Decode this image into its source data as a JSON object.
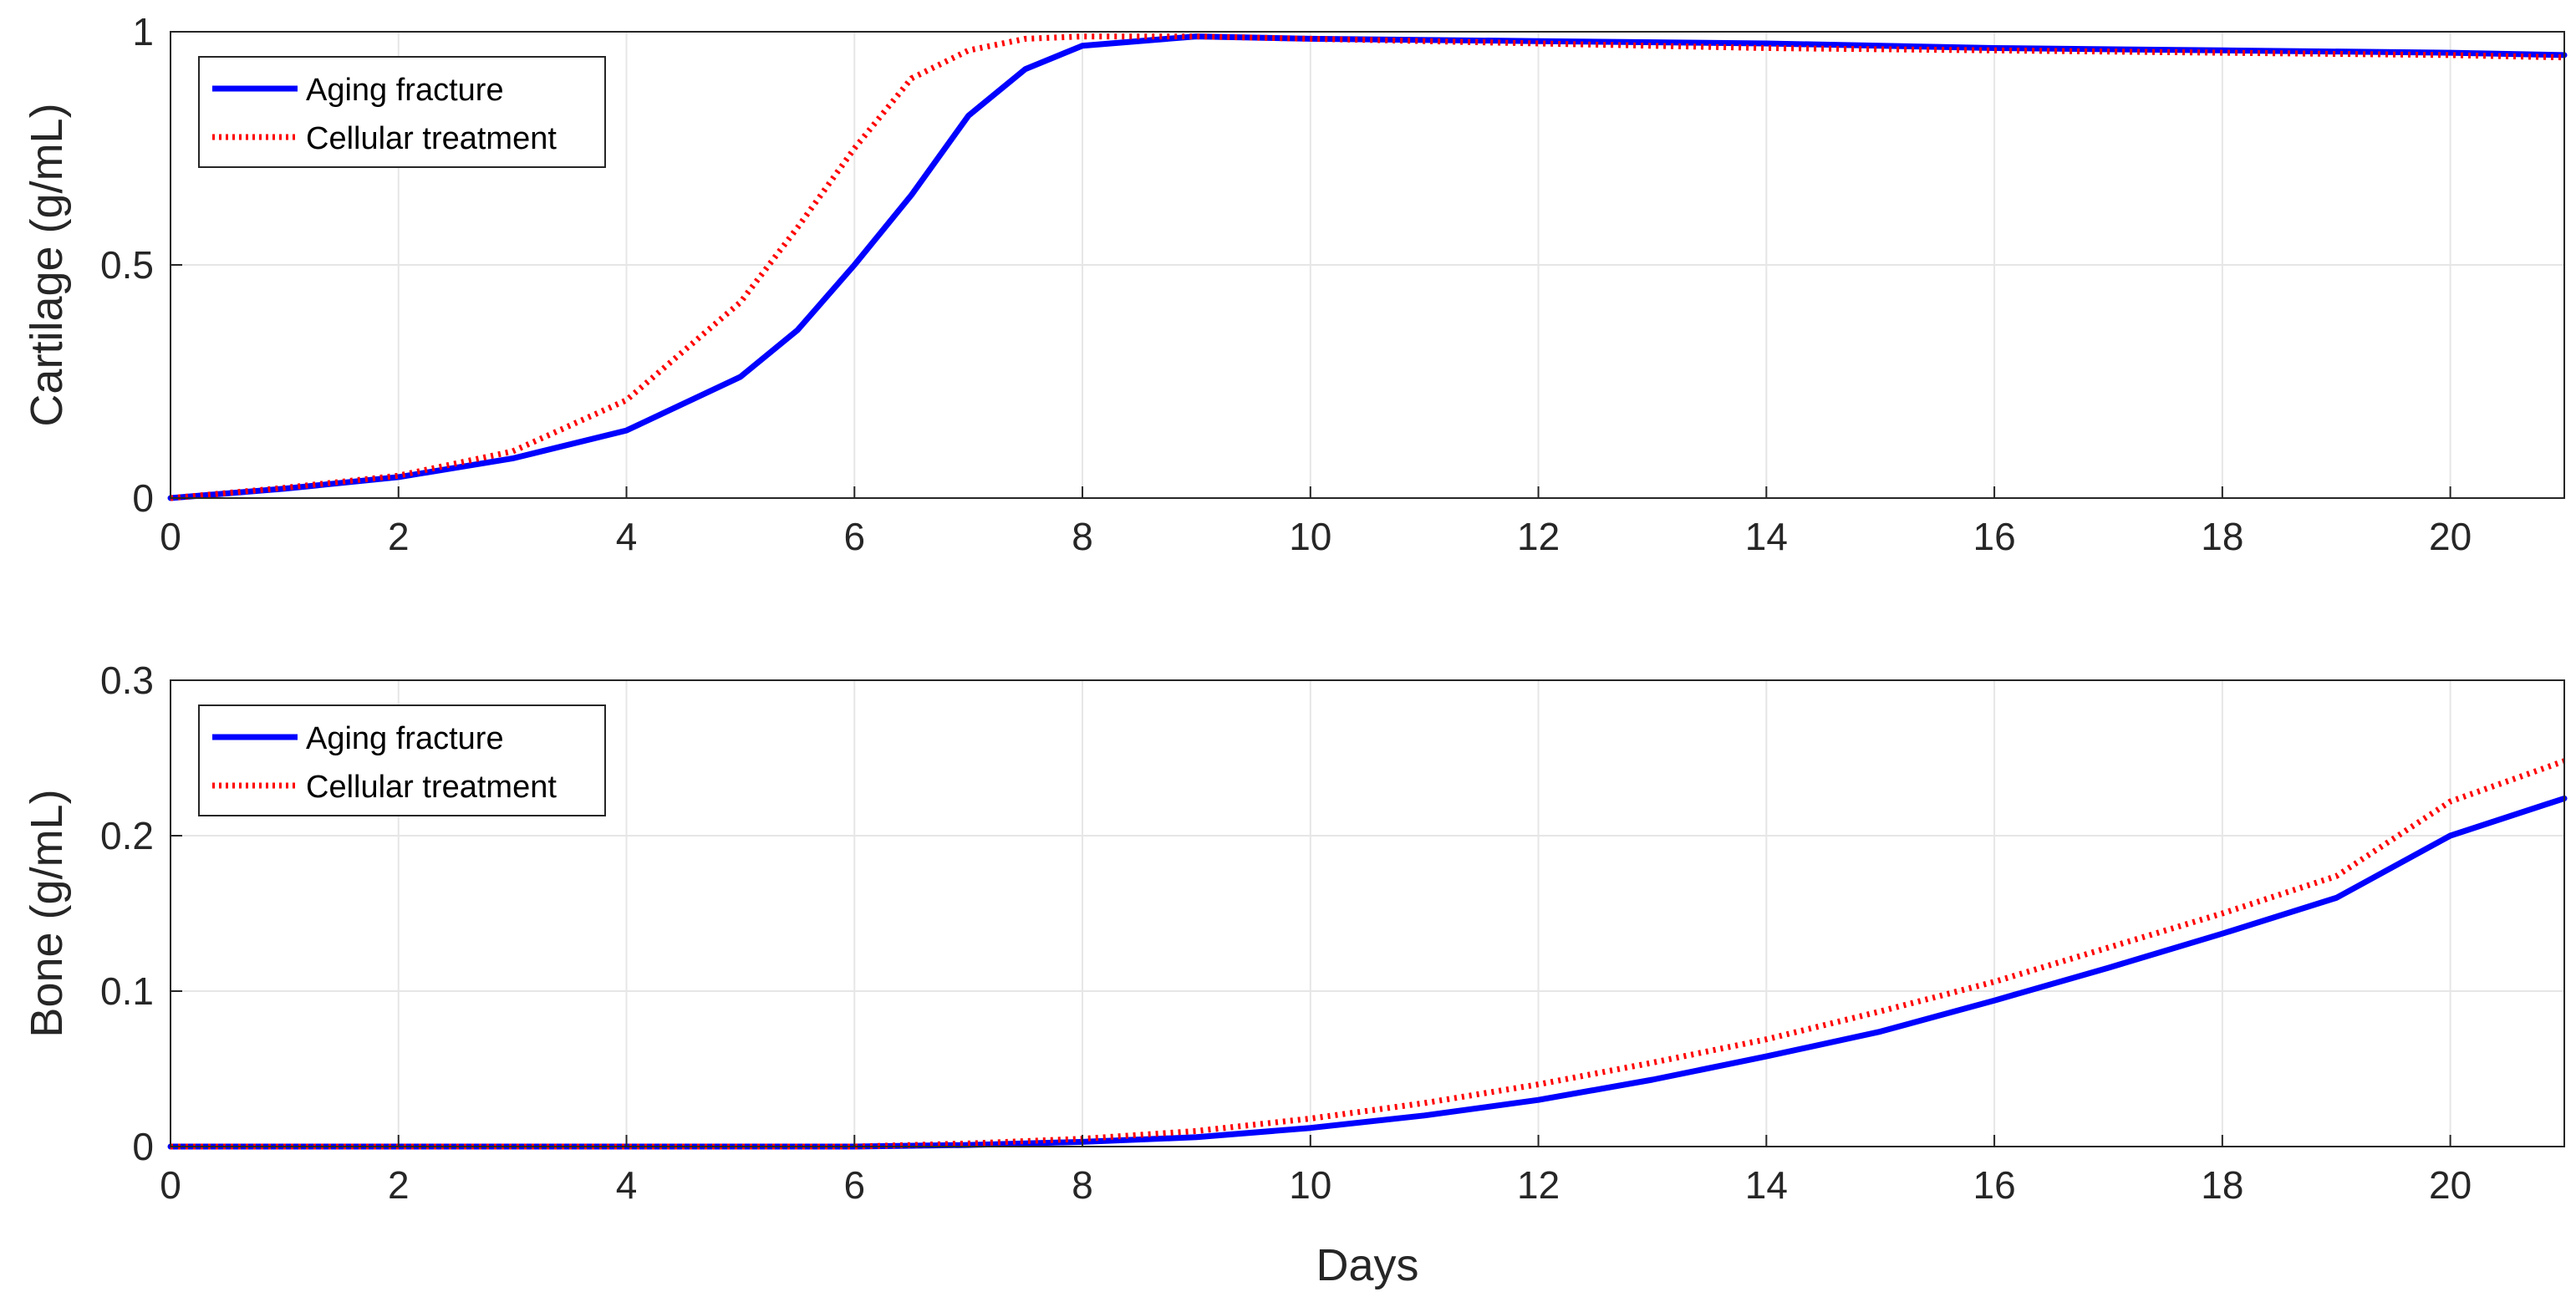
{
  "chart_data": [
    {
      "type": "line",
      "ylabel": "Cartilage (g/mL)",
      "xlabel": "",
      "xlim": [
        0,
        21
      ],
      "ylim": [
        0,
        1
      ],
      "xticks": [
        0,
        2,
        4,
        6,
        8,
        10,
        12,
        14,
        16,
        18,
        20
      ],
      "yticks": [
        0,
        0.5,
        1
      ],
      "grid": true,
      "legend_position": "top-left",
      "x": [
        0,
        1,
        2,
        3,
        4,
        5,
        5.5,
        6,
        6.5,
        7,
        7.5,
        8,
        9,
        10,
        12,
        14,
        16,
        18,
        20,
        21
      ],
      "series": [
        {
          "name": "Aging fracture",
          "color": "#0000ff",
          "style": "solid",
          "values": [
            0.0,
            0.02,
            0.045,
            0.085,
            0.145,
            0.26,
            0.36,
            0.5,
            0.65,
            0.82,
            0.92,
            0.97,
            0.99,
            0.985,
            0.98,
            0.975,
            0.965,
            0.96,
            0.955,
            0.95
          ]
        },
        {
          "name": "Cellular treatment",
          "color": "#ff0000",
          "style": "dotted",
          "values": [
            0.0,
            0.022,
            0.048,
            0.1,
            0.21,
            0.42,
            0.58,
            0.75,
            0.9,
            0.96,
            0.985,
            0.99,
            0.99,
            0.985,
            0.975,
            0.965,
            0.96,
            0.955,
            0.95,
            0.945
          ]
        }
      ]
    },
    {
      "type": "line",
      "ylabel": "Bone (g/mL)",
      "xlabel": "Days",
      "xlim": [
        0,
        21
      ],
      "ylim": [
        0,
        0.3
      ],
      "xticks": [
        0,
        2,
        4,
        6,
        8,
        10,
        12,
        14,
        16,
        18,
        20
      ],
      "yticks": [
        0,
        0.1,
        0.2,
        0.3
      ],
      "grid": true,
      "legend_position": "top-left",
      "x": [
        0,
        6,
        7,
        8,
        9,
        10,
        11,
        12,
        13,
        14,
        15,
        16,
        17,
        18,
        19,
        20,
        21
      ],
      "series": [
        {
          "name": "Aging fracture",
          "color": "#0000ff",
          "style": "solid",
          "values": [
            0.0,
            0.0,
            0.001,
            0.003,
            0.006,
            0.012,
            0.02,
            0.03,
            0.043,
            0.058,
            0.074,
            0.094,
            0.115,
            0.137,
            0.16,
            0.2,
            0.224
          ]
        },
        {
          "name": "Cellular treatment",
          "color": "#ff0000",
          "style": "dotted",
          "values": [
            0.0,
            0.0,
            0.002,
            0.005,
            0.01,
            0.018,
            0.028,
            0.04,
            0.054,
            0.069,
            0.087,
            0.106,
            0.128,
            0.15,
            0.174,
            0.222,
            0.248
          ]
        }
      ]
    }
  ]
}
